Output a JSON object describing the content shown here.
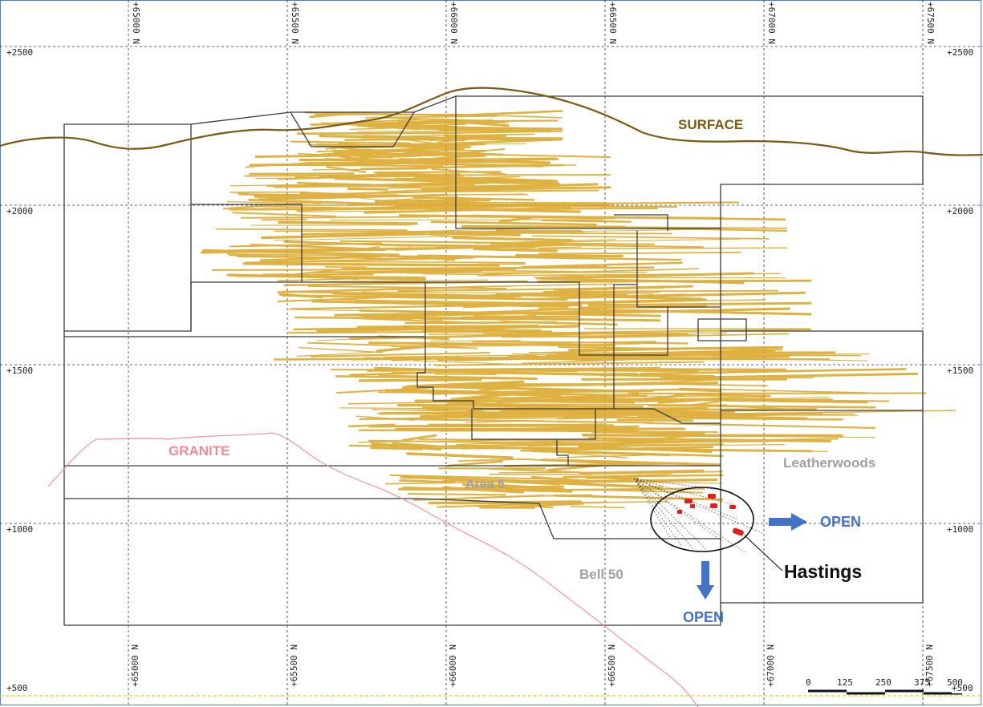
{
  "section": {
    "labels": {
      "surface": "SURFACE",
      "granite": "GRANITE",
      "leatherwoods": "Leatherwoods",
      "area5": "Area 5",
      "bell50": "Bell 50",
      "hastings": "Hastings",
      "open_right": "OPEN",
      "open_down": "OPEN"
    },
    "elevation_ticks_left": [
      "+2500",
      "+2000",
      "+1500",
      "+1000",
      "+500"
    ],
    "elevation_ticks_right": [
      "+2500",
      "+2000",
      "+1500",
      "+1000",
      "+500"
    ],
    "northing_ticks_top": [
      "+65000 N",
      "+65500 N",
      "+66000 N",
      "+66500 N",
      "+67000 N",
      "+67500 N"
    ],
    "northing_ticks_bottom": [
      "+65000 N",
      "+65500 N",
      "+66000 N",
      "+66500 N",
      "+67000 N",
      "+67500 N"
    ],
    "scale_bar": [
      "0",
      "125",
      "250",
      "375",
      "500"
    ]
  },
  "colors": {
    "surface": "#7a5a10",
    "granite": "#f08a93",
    "grey_label": "#a0a0a0",
    "open_blue": "#4472c4",
    "drill_gold": "#d9a420",
    "hastings_red": "#e02020",
    "grid": "#333333",
    "outline": "#333333"
  }
}
